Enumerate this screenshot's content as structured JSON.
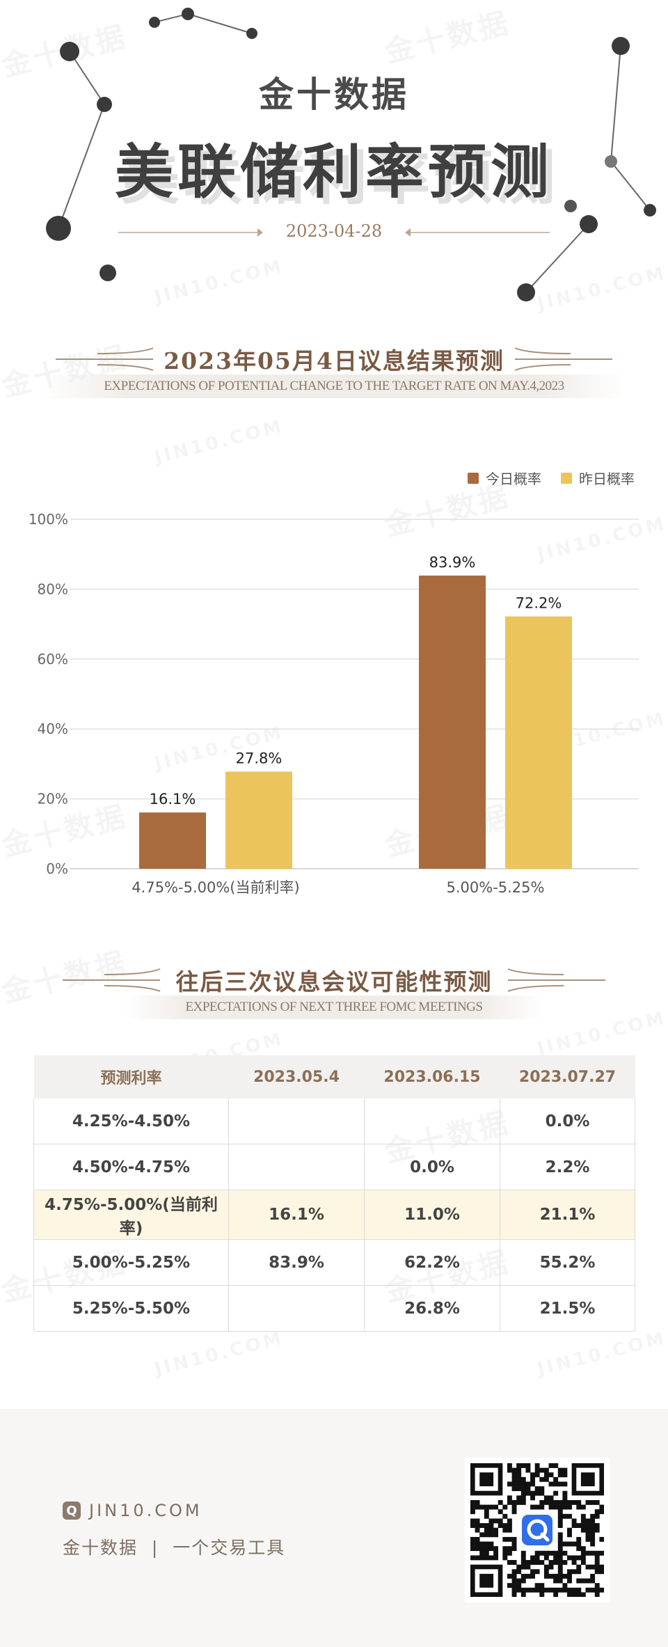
{
  "header": {
    "brand": "金十数据",
    "title": "美联储利率预测",
    "date": "2023-04-28"
  },
  "section1": {
    "title": "2023年05月4日议息结果预测",
    "subtitle": "EXPECTATIONS OF POTENTIAL CHANGE TO THE TARGET RATE ON MAY.4,2023"
  },
  "chart_data": {
    "type": "bar",
    "categories": [
      "4.75%-5.00%(当前利率)",
      "5.00%-5.25%"
    ],
    "series": [
      {
        "name": "今日概率",
        "values": [
          16.1,
          83.9
        ],
        "labels": [
          "16.1%",
          "83.9%"
        ],
        "color": "#a96a3e"
      },
      {
        "name": "昨日概率",
        "values": [
          27.8,
          72.2
        ],
        "labels": [
          "27.8%",
          "72.2%"
        ],
        "color": "#ecc45c"
      }
    ],
    "ylim": [
      0,
      100
    ],
    "yticks": [
      "0%",
      "20%",
      "40%",
      "60%",
      "80%",
      "100%"
    ],
    "grid": true,
    "legend": "top-right"
  },
  "section2": {
    "title": "往后三次议息会议可能性预测",
    "subtitle": "EXPECTATIONS OF NEXT THREE FOMC MEETINGS"
  },
  "table": {
    "headers": [
      "预测利率",
      "2023.05.4",
      "2023.06.15",
      "2023.07.27"
    ],
    "rows": [
      [
        "4.25%-4.50%",
        "",
        "",
        "0.0%"
      ],
      [
        "4.50%-4.75%",
        "",
        "0.0%",
        "2.2%"
      ],
      [
        "4.75%-5.00%(当前利率)",
        "16.1%",
        "11.0%",
        "21.1%"
      ],
      [
        "5.00%-5.25%",
        "83.9%",
        "62.2%",
        "55.2%"
      ],
      [
        "5.25%-5.50%",
        "",
        "26.8%",
        "21.5%"
      ]
    ],
    "highlight_row": 2,
    "highlight_color": "#fdf6e2"
  },
  "footer": {
    "logo_letter": "Q",
    "site": "JIN10.COM",
    "slogan": "金十数据  |  一个交易工具"
  },
  "watermark": {
    "cn": "金十数据",
    "en": "JIN10.COM"
  }
}
